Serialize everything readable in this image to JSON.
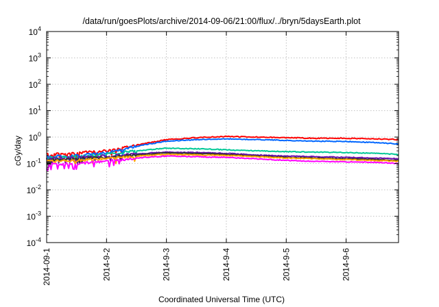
{
  "chart_data": {
    "type": "line",
    "title": "/data/run/goesPlots/archive/2014-09-06/21:00/flux/../bryn/5daysEarth.plot",
    "xlabel": "Coordinated Universal Time (UTC)",
    "ylabel": "cGy/day",
    "yscale": "log",
    "ylim": [
      0.0001,
      10000
    ],
    "xlim": [
      "2014-09-01",
      "2014-09-06T21:00"
    ],
    "grid": true,
    "legend": "none",
    "y_ticks": [
      {
        "value": 0.0001,
        "base": "10",
        "exp": "-4"
      },
      {
        "value": 0.001,
        "base": "10",
        "exp": "-3"
      },
      {
        "value": 0.01,
        "base": "10",
        "exp": "-2"
      },
      {
        "value": 0.1,
        "base": "10",
        "exp": "-1"
      },
      {
        "value": 1,
        "base": "10",
        "exp": "0"
      },
      {
        "value": 10,
        "base": "10",
        "exp": "1"
      },
      {
        "value": 100,
        "base": "10",
        "exp": "2"
      },
      {
        "value": 1000,
        "base": "10",
        "exp": "3"
      },
      {
        "value": 10000,
        "base": "10",
        "exp": "4"
      }
    ],
    "x_ticks": [
      {
        "date": "2014-09-01",
        "label": "2014-09-1"
      },
      {
        "date": "2014-09-02",
        "label": "2014-9-2"
      },
      {
        "date": "2014-09-03",
        "label": "2014-9-3"
      },
      {
        "date": "2014-09-04",
        "label": "2014-9-4"
      },
      {
        "date": "2014-09-05",
        "label": "2014-9-5"
      },
      {
        "date": "2014-09-06",
        "label": "2014-9-6"
      }
    ],
    "series": [
      {
        "color": "#ff0000",
        "x": [
          "2014-09-01",
          "2014-09-01T12:00",
          "2014-09-02",
          "2014-09-02T12:00",
          "2014-09-03",
          "2014-09-03T12:00",
          "2014-09-04",
          "2014-09-04T12:00",
          "2014-09-05",
          "2014-09-05T12:00",
          "2014-09-06",
          "2014-09-06T12:00",
          "2014-09-06T21:00"
        ],
        "values": [
          0.22,
          0.25,
          0.3,
          0.5,
          0.8,
          0.95,
          1.05,
          1.0,
          0.95,
          0.9,
          0.9,
          0.85,
          0.8
        ]
      },
      {
        "color": "#0066ff",
        "x": [
          "2014-09-01",
          "2014-09-01T12:00",
          "2014-09-02",
          "2014-09-02T12:00",
          "2014-09-03",
          "2014-09-03T12:00",
          "2014-09-04",
          "2014-09-04T12:00",
          "2014-09-05",
          "2014-09-05T12:00",
          "2014-09-06",
          "2014-09-06T12:00",
          "2014-09-06T21:00"
        ],
        "values": [
          0.18,
          0.2,
          0.25,
          0.45,
          0.7,
          0.8,
          0.85,
          0.8,
          0.75,
          0.7,
          0.68,
          0.62,
          0.55
        ]
      },
      {
        "color": "#00c896",
        "x": [
          "2014-09-01",
          "2014-09-01T12:00",
          "2014-09-02",
          "2014-09-02T12:00",
          "2014-09-03",
          "2014-09-03T12:00",
          "2014-09-04",
          "2014-09-04T12:00",
          "2014-09-05",
          "2014-09-05T12:00",
          "2014-09-06",
          "2014-09-06T12:00",
          "2014-09-06T21:00"
        ],
        "values": [
          0.16,
          0.18,
          0.22,
          0.3,
          0.38,
          0.36,
          0.33,
          0.3,
          0.28,
          0.27,
          0.26,
          0.24,
          0.22
        ]
      },
      {
        "color": "#6a0dad",
        "x": [
          "2014-09-01",
          "2014-09-01T12:00",
          "2014-09-02",
          "2014-09-02T12:00",
          "2014-09-03",
          "2014-09-03T12:00",
          "2014-09-04",
          "2014-09-04T12:00",
          "2014-09-05",
          "2014-09-05T12:00",
          "2014-09-06",
          "2014-09-06T12:00",
          "2014-09-06T21:00"
        ],
        "values": [
          0.15,
          0.17,
          0.19,
          0.23,
          0.27,
          0.26,
          0.24,
          0.21,
          0.19,
          0.18,
          0.17,
          0.16,
          0.15
        ]
      },
      {
        "color": "#333333",
        "x": [
          "2014-09-01",
          "2014-09-01T12:00",
          "2014-09-02",
          "2014-09-02T12:00",
          "2014-09-03",
          "2014-09-03T12:00",
          "2014-09-04",
          "2014-09-04T12:00",
          "2014-09-05",
          "2014-09-05T12:00",
          "2014-09-06",
          "2014-09-06T12:00",
          "2014-09-06T21:00"
        ],
        "values": [
          0.13,
          0.15,
          0.17,
          0.21,
          0.25,
          0.24,
          0.22,
          0.19,
          0.17,
          0.16,
          0.15,
          0.14,
          0.13
        ]
      },
      {
        "color": "#ffa500",
        "x": [
          "2014-09-01",
          "2014-09-01T12:00",
          "2014-09-02",
          "2014-09-02T12:00",
          "2014-09-03",
          "2014-09-03T12:00",
          "2014-09-04",
          "2014-09-04T12:00",
          "2014-09-05",
          "2014-09-05T12:00",
          "2014-09-06",
          "2014-09-06T12:00",
          "2014-09-06T21:00"
        ],
        "values": [
          0.12,
          0.13,
          0.15,
          0.19,
          0.22,
          0.21,
          0.2,
          0.18,
          0.16,
          0.15,
          0.14,
          0.13,
          0.12
        ]
      },
      {
        "color": "#ff00ff",
        "x": [
          "2014-09-01",
          "2014-09-01T12:00",
          "2014-09-02",
          "2014-09-02T12:00",
          "2014-09-03",
          "2014-09-03T12:00",
          "2014-09-04",
          "2014-09-04T12:00",
          "2014-09-05",
          "2014-09-05T12:00",
          "2014-09-06",
          "2014-09-06T12:00",
          "2014-09-06T21:00"
        ],
        "values": [
          0.09,
          0.1,
          0.12,
          0.16,
          0.19,
          0.18,
          0.17,
          0.15,
          0.13,
          0.12,
          0.115,
          0.11,
          0.1
        ]
      }
    ]
  }
}
